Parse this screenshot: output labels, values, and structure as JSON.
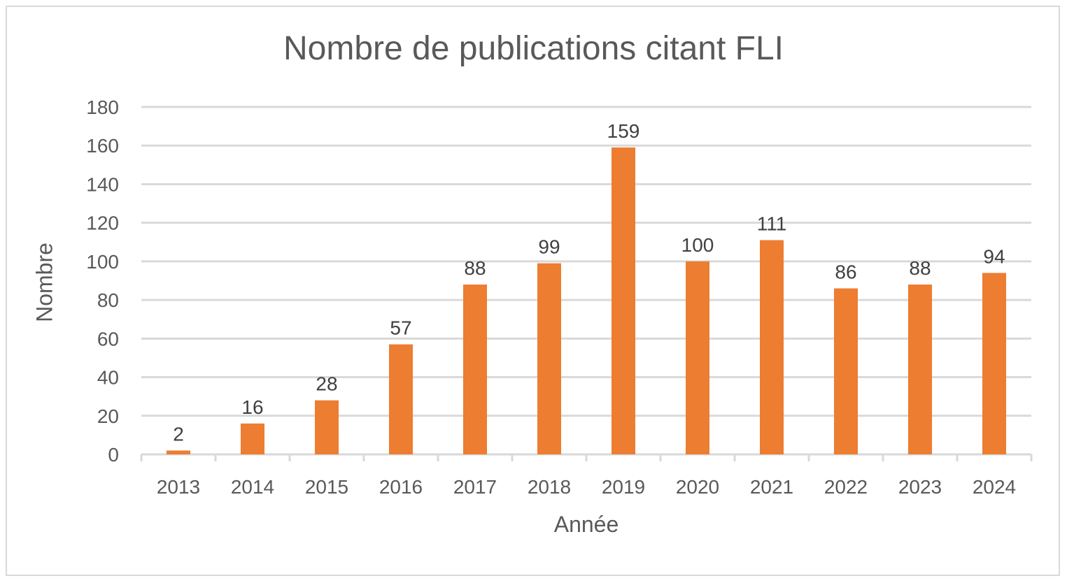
{
  "chart_data": {
    "type": "bar",
    "title": "Nombre de publications citant FLI",
    "xlabel": "Année",
    "ylabel": "Nombre",
    "categories": [
      "2013",
      "2014",
      "2015",
      "2016",
      "2017",
      "2018",
      "2019",
      "2020",
      "2021",
      "2022",
      "2023",
      "2024"
    ],
    "values": [
      2,
      16,
      28,
      57,
      88,
      99,
      159,
      100,
      111,
      86,
      88,
      94
    ],
    "ylim": [
      0,
      180
    ],
    "yticks": [
      0,
      20,
      40,
      60,
      80,
      100,
      120,
      140,
      160,
      180
    ],
    "grid": true,
    "data_labels": true,
    "legend": "none",
    "colors": {
      "bar": "#ED7D31",
      "grid": "#D9D9D9",
      "text": "#595959"
    }
  }
}
